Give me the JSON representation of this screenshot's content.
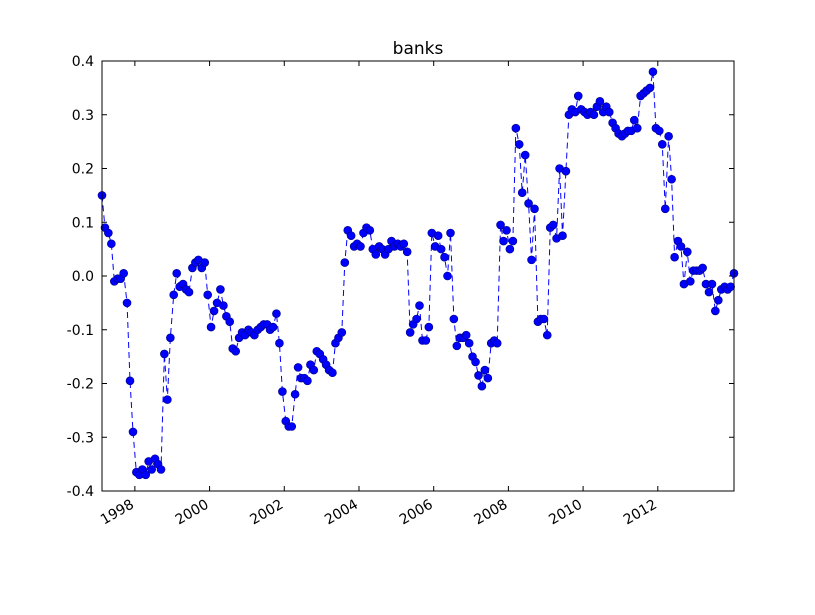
{
  "chart_data": {
    "type": "line",
    "title": "banks",
    "x": [
      1997.12,
      1997.2,
      1997.29,
      1997.37,
      1997.45,
      1997.54,
      1997.62,
      1997.7,
      1997.79,
      1997.87,
      1997.95,
      1998.04,
      1998.12,
      1998.2,
      1998.29,
      1998.37,
      1998.45,
      1998.54,
      1998.62,
      1998.7,
      1998.79,
      1998.87,
      1998.95,
      1999.04,
      1999.12,
      1999.2,
      1999.29,
      1999.37,
      1999.45,
      1999.54,
      1999.62,
      1999.7,
      1999.79,
      1999.87,
      1999.95,
      2000.04,
      2000.12,
      2000.2,
      2000.29,
      2000.37,
      2000.45,
      2000.54,
      2000.62,
      2000.7,
      2000.79,
      2000.87,
      2000.95,
      2001.04,
      2001.12,
      2001.2,
      2001.29,
      2001.37,
      2001.45,
      2001.54,
      2001.62,
      2001.7,
      2001.79,
      2001.87,
      2001.95,
      2002.04,
      2002.12,
      2002.2,
      2002.29,
      2002.37,
      2002.45,
      2002.54,
      2002.62,
      2002.7,
      2002.79,
      2002.87,
      2002.95,
      2003.04,
      2003.12,
      2003.2,
      2003.29,
      2003.37,
      2003.45,
      2003.54,
      2003.62,
      2003.7,
      2003.79,
      2003.87,
      2003.95,
      2004.04,
      2004.12,
      2004.2,
      2004.29,
      2004.37,
      2004.45,
      2004.54,
      2004.62,
      2004.7,
      2004.79,
      2004.87,
      2004.95,
      2005.04,
      2005.12,
      2005.2,
      2005.29,
      2005.37,
      2005.45,
      2005.54,
      2005.62,
      2005.7,
      2005.79,
      2005.87,
      2005.95,
      2006.04,
      2006.12,
      2006.2,
      2006.29,
      2006.37,
      2006.45,
      2006.54,
      2006.62,
      2006.7,
      2006.79,
      2006.87,
      2006.95,
      2007.04,
      2007.12,
      2007.2,
      2007.29,
      2007.37,
      2007.45,
      2007.54,
      2007.62,
      2007.7,
      2007.79,
      2007.87,
      2007.95,
      2008.04,
      2008.12,
      2008.2,
      2008.29,
      2008.37,
      2008.45,
      2008.54,
      2008.62,
      2008.7,
      2008.79,
      2008.87,
      2008.95,
      2009.04,
      2009.12,
      2009.2,
      2009.29,
      2009.37,
      2009.45,
      2009.54,
      2009.62,
      2009.7,
      2009.79,
      2009.87,
      2009.95,
      2010.04,
      2010.12,
      2010.2,
      2010.29,
      2010.37,
      2010.45,
      2010.54,
      2010.62,
      2010.7,
      2010.79,
      2010.87,
      2010.95,
      2011.04,
      2011.12,
      2011.2,
      2011.29,
      2011.37,
      2011.45,
      2011.54,
      2011.62,
      2011.7,
      2011.79,
      2011.87,
      2011.95,
      2012.04,
      2012.12,
      2012.2,
      2012.29,
      2012.37,
      2012.45,
      2012.54,
      2012.62,
      2012.7,
      2012.79,
      2012.87,
      2012.95,
      2013.04,
      2013.12,
      2013.2,
      2013.29,
      2013.37,
      2013.45,
      2013.54,
      2013.62,
      2013.7,
      2013.79,
      2013.87,
      2013.95,
      2014.04
    ],
    "values": [
      0.15,
      0.09,
      0.08,
      0.06,
      -0.01,
      -0.005,
      -0.005,
      0.005,
      -0.05,
      -0.195,
      -0.29,
      -0.365,
      -0.37,
      -0.36,
      -0.37,
      -0.345,
      -0.36,
      -0.34,
      -0.35,
      -0.36,
      -0.145,
      -0.23,
      -0.115,
      -0.035,
      0.005,
      -0.02,
      -0.015,
      -0.025,
      -0.03,
      0.015,
      0.025,
      0.03,
      0.015,
      0.025,
      -0.035,
      -0.095,
      -0.065,
      -0.05,
      -0.025,
      -0.055,
      -0.075,
      -0.085,
      -0.135,
      -0.14,
      -0.115,
      -0.105,
      -0.11,
      -0.1,
      -0.105,
      -0.11,
      -0.1,
      -0.095,
      -0.09,
      -0.09,
      -0.1,
      -0.095,
      -0.07,
      -0.125,
      -0.215,
      -0.27,
      -0.28,
      -0.28,
      -0.22,
      -0.17,
      -0.19,
      -0.19,
      -0.195,
      -0.165,
      -0.175,
      -0.14,
      -0.145,
      -0.155,
      -0.165,
      -0.175,
      -0.18,
      -0.125,
      -0.115,
      -0.105,
      0.025,
      0.085,
      0.075,
      0.055,
      0.06,
      0.055,
      0.08,
      0.09,
      0.085,
      0.05,
      0.04,
      0.055,
      0.05,
      0.04,
      0.05,
      0.065,
      0.055,
      0.06,
      0.055,
      0.06,
      0.045,
      -0.105,
      -0.09,
      -0.08,
      -0.055,
      -0.12,
      -0.12,
      -0.095,
      0.08,
      0.055,
      0.075,
      0.05,
      0.035,
      0.0,
      0.08,
      -0.08,
      -0.13,
      -0.115,
      -0.115,
      -0.11,
      -0.125,
      -0.15,
      -0.16,
      -0.185,
      -0.205,
      -0.175,
      -0.19,
      -0.125,
      -0.12,
      -0.125,
      0.095,
      0.065,
      0.085,
      0.05,
      0.065,
      0.275,
      0.245,
      0.155,
      0.225,
      0.135,
      0.03,
      0.125,
      -0.085,
      -0.08,
      -0.08,
      -0.11,
      0.09,
      0.095,
      0.07,
      0.2,
      0.075,
      0.195,
      0.3,
      0.31,
      0.305,
      0.335,
      0.31,
      0.305,
      0.3,
      0.305,
      0.3,
      0.315,
      0.325,
      0.305,
      0.315,
      0.305,
      0.285,
      0.275,
      0.265,
      0.26,
      0.265,
      0.27,
      0.27,
      0.29,
      0.275,
      0.335,
      0.34,
      0.345,
      0.35,
      0.38,
      0.275,
      0.27,
      0.245,
      0.125,
      0.26,
      0.18,
      0.035,
      0.065,
      0.055,
      -0.015,
      0.045,
      -0.01,
      0.01,
      0.01,
      0.01,
      0.015,
      -0.015,
      -0.03,
      -0.015,
      -0.065,
      -0.045,
      -0.025,
      -0.02,
      -0.025,
      -0.02,
      0.005
    ],
    "color": "#0000ff",
    "xlim": [
      1997.12,
      2014.04
    ],
    "xticks": [
      1998,
      2000,
      2002,
      2004,
      2006,
      2008,
      2010,
      2012
    ],
    "ylim": [
      -0.4,
      0.4
    ],
    "yticks": [
      -0.4,
      -0.3,
      -0.2,
      -0.1,
      {
        "value": 0,
        "label": "0.0"
      },
      0.1,
      0.2,
      0.3,
      0.4
    ]
  }
}
